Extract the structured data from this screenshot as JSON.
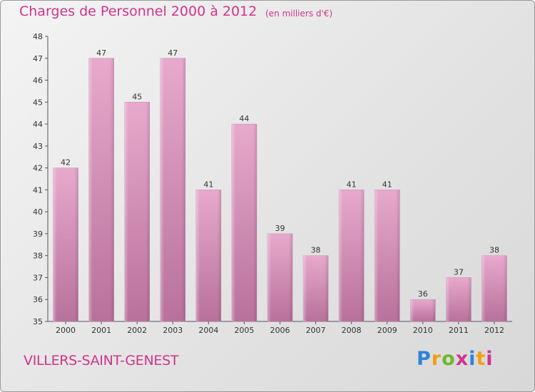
{
  "header": {
    "title": "Charges de Personnel 2000 à 2012",
    "subtitle": "(en milliers d'€)"
  },
  "footer": {
    "city": "VILLERS-SAINT-GENEST",
    "logo_letters": [
      "P",
      "r",
      "o",
      "x",
      "i",
      "t",
      "i"
    ]
  },
  "colors": {
    "bar": "#cf80ad",
    "title": "#d0348c"
  },
  "chart_data": {
    "type": "bar",
    "title": "Charges de Personnel 2000 à 2012",
    "subtitle": "(en milliers d'€)",
    "xlabel": "",
    "ylabel": "",
    "categories": [
      "2000",
      "2001",
      "2002",
      "2003",
      "2004",
      "2005",
      "2006",
      "2007",
      "2008",
      "2009",
      "2010",
      "2011",
      "2012"
    ],
    "values": [
      42,
      47,
      45,
      47,
      41,
      44,
      39,
      38,
      41,
      41,
      36,
      37,
      38
    ],
    "data_labels": [
      "42",
      "47",
      "45",
      "47",
      "41",
      "44",
      "39",
      "38",
      "41",
      "41",
      "36",
      "37",
      "38"
    ],
    "ylim": [
      35,
      48
    ],
    "yticks": [
      35,
      36,
      37,
      38,
      39,
      40,
      41,
      42,
      43,
      44,
      45,
      46,
      47,
      48
    ],
    "grid": false,
    "legend": "none"
  }
}
